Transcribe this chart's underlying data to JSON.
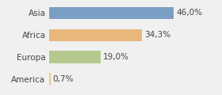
{
  "categories": [
    "America",
    "Europa",
    "Africa",
    "Asia"
  ],
  "values": [
    0.7,
    19.0,
    34.3,
    46.0
  ],
  "labels": [
    "0,7%",
    "19,0%",
    "34,3%",
    "46,0%"
  ],
  "bar_colors": [
    "#e8d080",
    "#b5c98e",
    "#e8b87a",
    "#7b9fc4"
  ],
  "background_color": "#f0f0f0",
  "xlim": [
    0,
    62
  ],
  "bar_height": 0.55,
  "label_fontsize": 7.5,
  "tick_fontsize": 7.5
}
